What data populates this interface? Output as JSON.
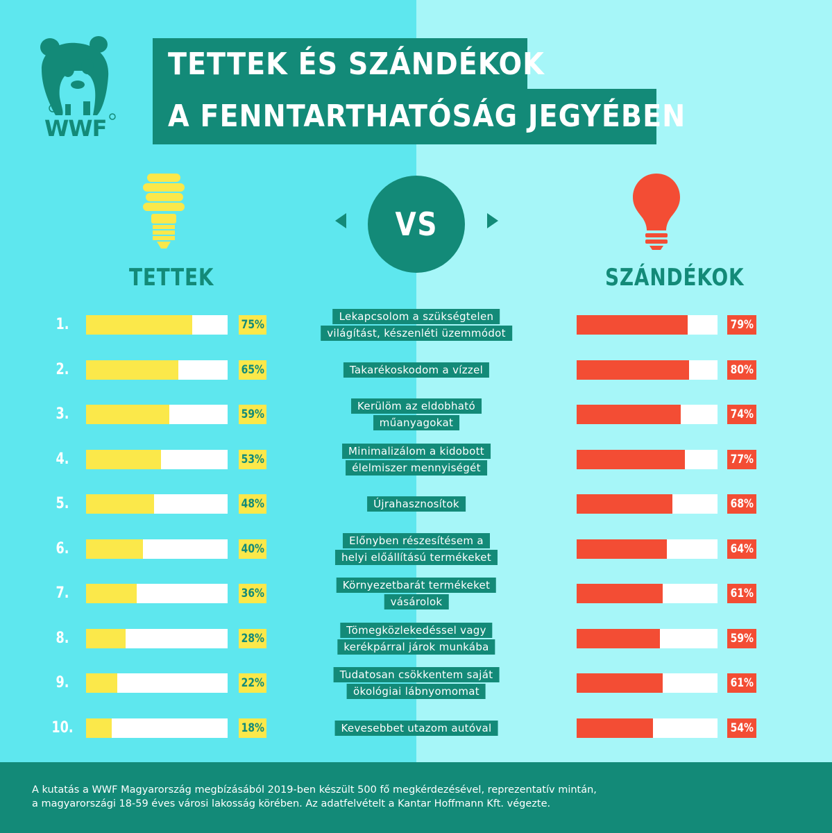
{
  "title": {
    "line1": "TETTEK ÉS SZÁNDÉKOK",
    "line2": "A FENNTARTHATÓSÁG JEGYÉBEN"
  },
  "logo": {
    "text": "WWF",
    "icon": "panda-icon"
  },
  "vs_label": "VS",
  "left_heading": "TETTEK",
  "right_heading": "SZÁNDÉKOK",
  "colors": {
    "teal": "#138a78",
    "yellow": "#fbe84a",
    "red": "#f34d34",
    "left_bg": "#5ee7ee",
    "right_bg": "#a6f6f8"
  },
  "chart_data": {
    "type": "bar",
    "categories": [
      [
        "Lekapcsolom a szükségtelen",
        "világítást, készenléti üzemmódot"
      ],
      [
        "Takarékoskodom a vízzel"
      ],
      [
        "Kerülöm az eldobható",
        "műanyagokat"
      ],
      [
        "Minimalizálom a kidobott",
        "élelmiszer mennyiségét"
      ],
      [
        "Újrahasznosítok"
      ],
      [
        "Előnyben részesítésem a",
        "helyi előállítású termékeket"
      ],
      [
        "Környezetbarát termékeket",
        "vásárolok"
      ],
      [
        "Tömegközlekedéssel vagy",
        "kerékpárral járok munkába"
      ],
      [
        "Tudatosan csökkentem saját",
        "ökológiai lábnyomomat"
      ],
      [
        "Kevesebbet utazom autóval"
      ]
    ],
    "ranks": [
      "1.",
      "2.",
      "3.",
      "4.",
      "5.",
      "6.",
      "7.",
      "8.",
      "9.",
      "10."
    ],
    "series": [
      {
        "name": "TETTEK",
        "values": [
          75,
          65,
          59,
          53,
          48,
          40,
          36,
          28,
          22,
          18
        ],
        "labels": [
          "75%",
          "65%",
          "59%",
          "53%",
          "48%",
          "40%",
          "36%",
          "28%",
          "22%",
          "18%"
        ]
      },
      {
        "name": "SZÁNDÉKOK",
        "values": [
          79,
          80,
          74,
          77,
          68,
          64,
          61,
          59,
          61,
          54
        ],
        "labels": [
          "79%",
          "80%",
          "74%",
          "77%",
          "68%",
          "64%",
          "61%",
          "59%",
          "61%",
          "54%"
        ]
      }
    ],
    "ylim": [
      0,
      100
    ]
  },
  "footer": {
    "line1": "A kutatás a WWF Magyarország megbízásából 2019-ben készült 500 fő megkérdezésével, reprezentatív mintán,",
    "line2": "a magyarországi 18-59 éves városi lakosság körében. Az adatfelvételt a Kantar Hoffmann Kft. végezte."
  }
}
